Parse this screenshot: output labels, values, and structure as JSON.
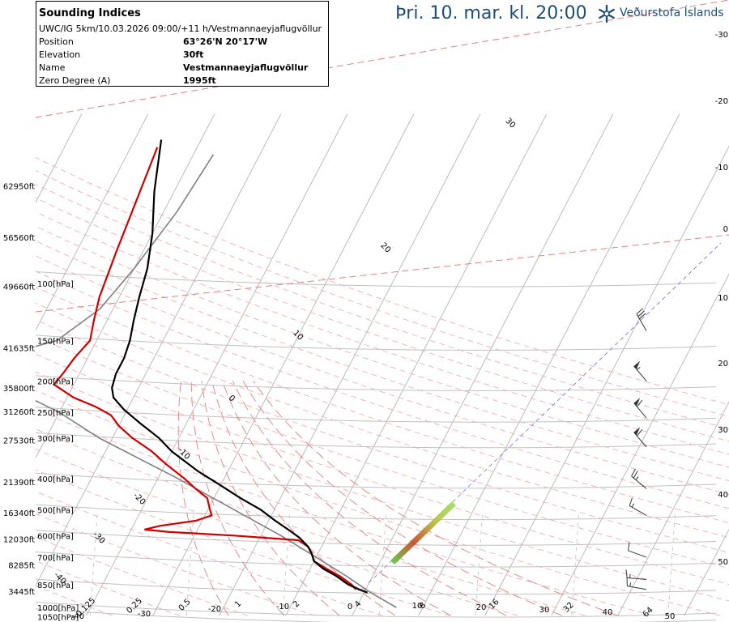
{
  "valid_time": "Þri. 10. mar. kl. 20:00",
  "logo": {
    "text": "Veðurstofa Íslands",
    "icon": "snowflake-logo-icon"
  },
  "info_box": {
    "title": "Sounding Indices",
    "subtitle": "UWC/IG 5km/10.03.2026 09:00/+11 h/Vestmannaeyjaflugvöllur",
    "rows": [
      {
        "label": "Position",
        "value": "63°26'N 20°17'W"
      },
      {
        "label": "Elevation",
        "value": "30ft"
      },
      {
        "label": "Name",
        "value": "Vestmannaeyjaflugvöllur"
      },
      {
        "label": "Zero Degree (A)",
        "value": "1995ft"
      }
    ]
  },
  "colors": {
    "temperature": "#d00000",
    "dewpoint": "#000000",
    "parcel": "#808080",
    "dry_adiabat": "#f0b0b0",
    "moist_adiabat": "#e08080",
    "mixing_ratio": "#c8c8c8",
    "isotherm": "#bbbbbb",
    "isobar": "#c0c0c0",
    "wind": "#333333"
  },
  "chart_data": {
    "type": "line",
    "title": "",
    "xlabel": "",
    "ylabel": "",
    "pressure_levels": [
      {
        "p": 1000,
        "label": "1000[hPa]"
      },
      {
        "p": 1050,
        "label": "1050[hPa]"
      },
      {
        "p": 850,
        "label": "850[hPa]"
      },
      {
        "p": 700,
        "label": "700[hPa]"
      },
      {
        "p": 600,
        "label": "600[hPa]"
      },
      {
        "p": 500,
        "label": "500[hPa]"
      },
      {
        "p": 400,
        "label": "400[hPa]"
      },
      {
        "p": 300,
        "label": "300[hPa]"
      },
      {
        "p": 250,
        "label": "250[hPa]"
      },
      {
        "p": 200,
        "label": "200[hPa]"
      },
      {
        "p": 150,
        "label": "150[hPa]"
      },
      {
        "p": 100,
        "label": "100[hPa]"
      }
    ],
    "altitude_labels": [
      {
        "p": 890,
        "label": "3445ft"
      },
      {
        "p": 740,
        "label": "8285ft"
      },
      {
        "p": 615,
        "label": "12030ft"
      },
      {
        "p": 510,
        "label": "16340ft"
      },
      {
        "p": 410,
        "label": "21390ft"
      },
      {
        "p": 305,
        "label": "27530ft"
      },
      {
        "p": 248,
        "label": "31260ft"
      },
      {
        "p": 210,
        "label": "35800ft"
      },
      {
        "p": 158,
        "label": "41635ft"
      },
      {
        "p": 102,
        "label": "49660ft"
      },
      {
        "p": 72,
        "label": "56560ft"
      },
      {
        "p": 50,
        "label": "62950ft"
      }
    ],
    "isotherm_labels": [
      "-30",
      "-20",
      "-10",
      "0",
      "10",
      "20",
      "30",
      "40",
      "50"
    ],
    "mixing_ratio_labels": [
      "0.125",
      "0.25",
      "0.5",
      "1",
      "2",
      "4",
      "8",
      "16",
      "32",
      "64"
    ],
    "moist_adiabat_labels": [
      "-40",
      "-30",
      "-20",
      "-10",
      "0",
      "10",
      "20",
      "30"
    ],
    "bottom_labels": [
      "-40",
      "-30",
      "-20",
      "-10",
      "0",
      "10",
      "20",
      "30",
      "40",
      "50"
    ],
    "temperature": [
      {
        "p": 880,
        "t": -1.5
      },
      {
        "p": 850,
        "t": -2.5
      },
      {
        "p": 800,
        "t": -5
      },
      {
        "p": 760,
        "t": -7.5
      },
      {
        "p": 720,
        "t": -10
      },
      {
        "p": 680,
        "t": -11
      },
      {
        "p": 650,
        "t": -12
      },
      {
        "p": 620,
        "t": -14
      },
      {
        "p": 600,
        "t": -24
      },
      {
        "p": 585,
        "t": -34
      },
      {
        "p": 575,
        "t": -38
      },
      {
        "p": 560,
        "t": -36
      },
      {
        "p": 540,
        "t": -31
      },
      {
        "p": 520,
        "t": -29
      },
      {
        "p": 490,
        "t": -30
      },
      {
        "p": 460,
        "t": -31
      },
      {
        "p": 430,
        "t": -33.5
      },
      {
        "p": 400,
        "t": -36
      },
      {
        "p": 360,
        "t": -40
      },
      {
        "p": 330,
        "t": -43
      },
      {
        "p": 300,
        "t": -47
      },
      {
        "p": 275,
        "t": -50
      },
      {
        "p": 255,
        "t": -52
      },
      {
        "p": 240,
        "t": -55
      },
      {
        "p": 225,
        "t": -59
      },
      {
        "p": 205,
        "t": -63
      },
      {
        "p": 190,
        "t": -62.5
      },
      {
        "p": 170,
        "t": -62
      },
      {
        "p": 150,
        "t": -61
      },
      {
        "p": 130,
        "t": -62
      },
      {
        "p": 110,
        "t": -63
      },
      {
        "p": 80,
        "t": -64
      },
      {
        "p": 55,
        "t": -65
      },
      {
        "p": 38,
        "t": -66
      }
    ],
    "dewpoint": [
      {
        "p": 900,
        "t": 0.5
      },
      {
        "p": 880,
        "t": -1
      },
      {
        "p": 850,
        "t": -3
      },
      {
        "p": 800,
        "t": -5.5
      },
      {
        "p": 760,
        "t": -8
      },
      {
        "p": 720,
        "t": -10
      },
      {
        "p": 680,
        "t": -11
      },
      {
        "p": 650,
        "t": -12
      },
      {
        "p": 610,
        "t": -14
      },
      {
        "p": 580,
        "t": -16
      },
      {
        "p": 540,
        "t": -19
      },
      {
        "p": 500,
        "t": -22
      },
      {
        "p": 460,
        "t": -26
      },
      {
        "p": 420,
        "t": -30
      },
      {
        "p": 380,
        "t": -34.5
      },
      {
        "p": 330,
        "t": -40
      },
      {
        "p": 300,
        "t": -43
      },
      {
        "p": 270,
        "t": -47
      },
      {
        "p": 245,
        "t": -50.5
      },
      {
        "p": 225,
        "t": -53
      },
      {
        "p": 210,
        "t": -54
      },
      {
        "p": 190,
        "t": -54.5
      },
      {
        "p": 170,
        "t": -54.5
      },
      {
        "p": 150,
        "t": -55
      },
      {
        "p": 130,
        "t": -56
      },
      {
        "p": 110,
        "t": -57
      },
      {
        "p": 90,
        "t": -58
      },
      {
        "p": 70,
        "t": -60
      },
      {
        "p": 52,
        "t": -63
      },
      {
        "p": 36,
        "t": -66
      }
    ],
    "parcel": [
      {
        "p": 1000,
        "t": 6
      },
      {
        "p": 900,
        "t": 1
      },
      {
        "p": 800,
        "t": -4
      },
      {
        "p": 700,
        "t": -10
      },
      {
        "p": 600,
        "t": -17
      },
      {
        "p": 500,
        "t": -26
      },
      {
        "p": 400,
        "t": -37
      },
      {
        "p": 300,
        "t": -52
      },
      {
        "p": 250,
        "t": -60
      },
      {
        "p": 200,
        "t": -72
      },
      {
        "p": 175,
        "t": -76
      },
      {
        "p": 150,
        "t": -66
      },
      {
        "p": 120,
        "t": -62
      },
      {
        "p": 90,
        "t": -60
      },
      {
        "p": 60,
        "t": -58
      },
      {
        "p": 40,
        "t": -57
      }
    ],
    "winds": [
      {
        "p": 880,
        "dir": 280,
        "kt": 15
      },
      {
        "p": 820,
        "dir": 275,
        "kt": 15
      },
      {
        "p": 700,
        "dir": 290,
        "kt": 10
      },
      {
        "p": 520,
        "dir": 300,
        "kt": 15
      },
      {
        "p": 430,
        "dir": 310,
        "kt": 25
      },
      {
        "p": 320,
        "dir": 320,
        "kt": 60
      },
      {
        "p": 260,
        "dir": 320,
        "kt": 60
      },
      {
        "p": 200,
        "dir": 320,
        "kt": 55
      },
      {
        "p": 140,
        "dir": 330,
        "kt": 30
      }
    ]
  }
}
